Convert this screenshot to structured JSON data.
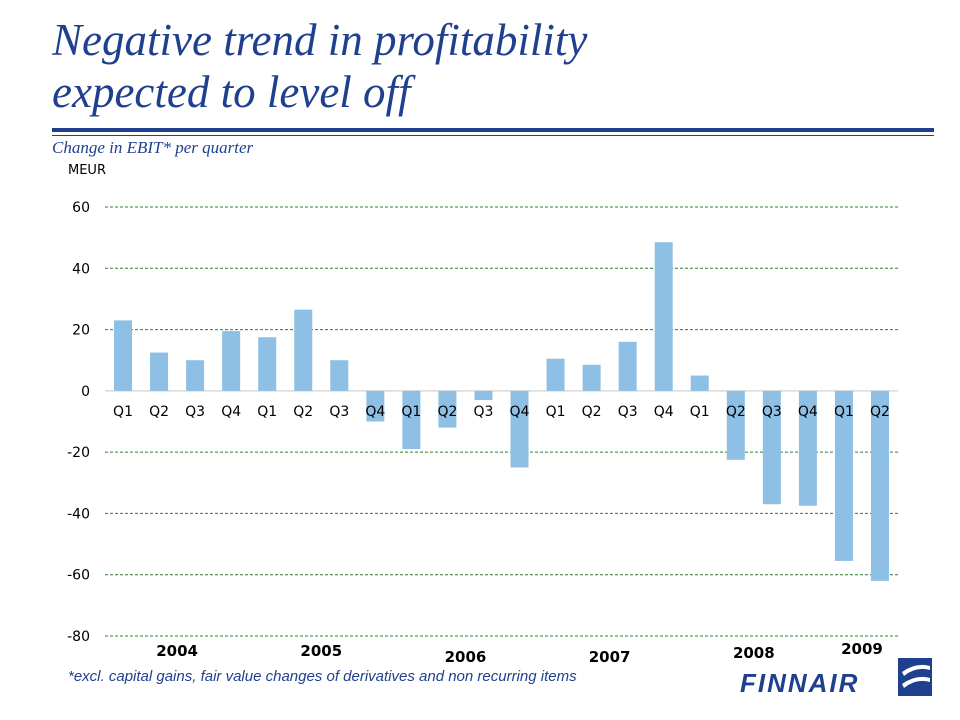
{
  "title_line1": "Negative trend in profitability",
  "title_line2": "expected to level off",
  "subtitle": "Change in EBIT* per quarter",
  "footnote": "*excl. capital gains, fair value changes of derivatives and non recurring items",
  "logo_text": "FINNAIR",
  "colors": {
    "title": "#1f3f8f",
    "bar": "#8dc0e4",
    "grid": "#2e7d32"
  },
  "chart_data": {
    "type": "bar",
    "ylabel": "MEUR",
    "ylim": [
      -80,
      60
    ],
    "yticks": [
      60,
      40,
      20,
      0,
      -20,
      -40,
      -60,
      -80
    ],
    "ytick_labels": [
      "60",
      "40",
      "20",
      "0",
      "-20",
      "-40",
      "-60",
      "-80"
    ],
    "grid": true,
    "categories": [
      "Q1",
      "Q2",
      "Q3",
      "Q4",
      "Q1",
      "Q2",
      "Q3",
      "Q4",
      "Q1",
      "Q2",
      "Q3",
      "Q4",
      "Q1",
      "Q2",
      "Q3",
      "Q4",
      "Q1",
      "Q2",
      "Q3",
      "Q4",
      "Q1",
      "Q2"
    ],
    "values": [
      23,
      12.5,
      10,
      19.5,
      17.5,
      26.5,
      10,
      -10,
      -19,
      -12,
      -3,
      -25,
      10.5,
      8.5,
      16,
      48.5,
      5,
      -22.5,
      -37,
      -37.5,
      -55.5,
      -62
    ],
    "year_labels": [
      {
        "text": "2004",
        "start": 0,
        "end": 3
      },
      {
        "text": "2005",
        "start": 4,
        "end": 7
      },
      {
        "text": "2006",
        "start": 8,
        "end": 11
      },
      {
        "text": "2007",
        "start": 12,
        "end": 15
      },
      {
        "text": "2008",
        "start": 16,
        "end": 19
      },
      {
        "text": "2009",
        "start": 20,
        "end": 21
      }
    ]
  }
}
